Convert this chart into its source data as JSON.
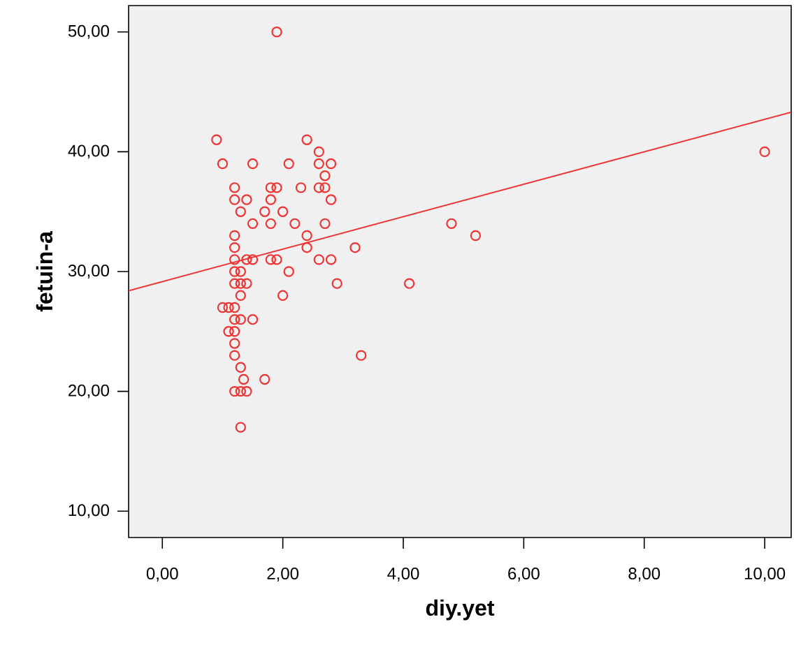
{
  "chart_data": {
    "type": "scatter",
    "xlabel": "diy.yet",
    "ylabel": "fetuin-a",
    "marker": "circle",
    "xlim": [
      -0.56,
      10.44
    ],
    "ylim": [
      7.8,
      52.2
    ],
    "xticks": [
      {
        "value": 0,
        "label": "0,00"
      },
      {
        "value": 2,
        "label": "2,00"
      },
      {
        "value": 4,
        "label": "4,00"
      },
      {
        "value": 6,
        "label": "6,00"
      },
      {
        "value": 8,
        "label": "8,00"
      },
      {
        "value": 10,
        "label": "10,00"
      }
    ],
    "yticks": [
      {
        "value": 10,
        "label": "10,00"
      },
      {
        "value": 20,
        "label": "20,00"
      },
      {
        "value": 30,
        "label": "30,00"
      },
      {
        "value": 40,
        "label": "40,00"
      },
      {
        "value": 50,
        "label": "50,00"
      }
    ],
    "series": [
      {
        "color": "#ee3333",
        "x": [
          0.9,
          1.0,
          1.9,
          1.5,
          2.1,
          2.4,
          2.6,
          2.6,
          2.8,
          2.7,
          2.6,
          2.7,
          2.8,
          2.7,
          2.3,
          1.8,
          1.9,
          1.8,
          1.7,
          2.0,
          1.8,
          2.2,
          2.4,
          2.4,
          2.6,
          2.8,
          1.8,
          1.9,
          2.1,
          2.9,
          2.0,
          1.7,
          1.2,
          1.2,
          1.4,
          1.3,
          1.5,
          1.2,
          1.2,
          1.2,
          1.4,
          1.5,
          1.2,
          1.3,
          1.2,
          1.3,
          1.4,
          1.3,
          1.0,
          1.1,
          1.2,
          1.2,
          1.3,
          1.5,
          1.1,
          1.2,
          1.2,
          1.2,
          1.3,
          1.35,
          1.2,
          1.3,
          1.4,
          1.3,
          3.2,
          3.3,
          4.1,
          4.8,
          5.2,
          10.0
        ],
        "values": [
          41,
          39,
          50,
          39,
          39,
          41,
          40,
          39,
          39,
          38,
          37,
          37,
          36,
          34,
          37,
          37,
          37,
          36,
          35,
          35,
          34,
          34,
          33,
          32,
          31,
          31,
          31,
          31,
          30,
          29,
          28,
          21,
          37,
          36,
          36,
          35,
          34,
          33,
          32,
          31,
          31,
          31,
          30,
          30,
          29,
          29,
          29,
          28,
          27,
          27,
          27,
          26,
          26,
          26,
          25,
          25,
          24,
          23,
          22,
          21,
          20,
          20,
          20,
          17,
          32,
          23,
          29,
          34,
          33,
          40
        ]
      },
      {
        "type": "line",
        "marker": "none",
        "color": "#ee3333",
        "x": [
          -0.56,
          10.44
        ],
        "values": [
          28.4,
          43.3
        ]
      }
    ]
  }
}
